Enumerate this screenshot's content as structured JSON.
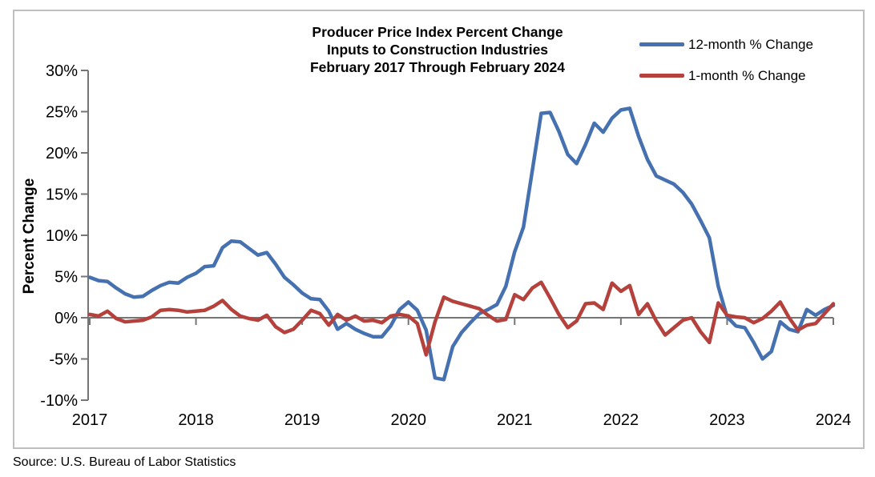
{
  "figure": {
    "title_lines": [
      "Producer Price Index Percent Change",
      "Inputs to Construction Industries",
      "February 2017 Through February 2024"
    ],
    "y_axis_title": "Percent Change",
    "source": "Source: U.S. Bureau of Labor Statistics"
  },
  "legend": {
    "items": [
      {
        "label": "12-month % Change"
      },
      {
        "label": "1-month % Change"
      }
    ]
  },
  "colors": {
    "series_12_month": "#4671B1",
    "series_1_month": "#B4413C",
    "axis": "#757575",
    "figure_border": "#BFBFBF",
    "background": "#FFFFFF",
    "text": "#000000"
  },
  "chart_data": {
    "type": "line",
    "title": "Producer Price Index Percent Change — Inputs to Construction Industries — February 2017 Through February 2024",
    "ylabel": "Percent Change",
    "xlabel": "",
    "frequency": "monthly",
    "x_start": "2017-02",
    "x_end": "2024-02",
    "x_tick_labels": [
      "2017",
      "2018",
      "2019",
      "2020",
      "2021",
      "2022",
      "2023",
      "2024"
    ],
    "y_tick_labels": [
      "30%",
      "25%",
      "20%",
      "15%",
      "10%",
      "5%",
      "0%",
      "-5%",
      "-10%"
    ],
    "ylim": [
      -10,
      30
    ],
    "grid": "zero-line-only",
    "legend_position": "top-right",
    "series": [
      {
        "name": "12-month % Change",
        "color": "#4671B1",
        "values": [
          4.9,
          4.5,
          4.4,
          3.6,
          2.9,
          2.5,
          2.6,
          3.3,
          3.9,
          4.3,
          4.2,
          4.9,
          5.4,
          6.2,
          6.3,
          8.5,
          9.3,
          9.2,
          8.4,
          7.6,
          7.9,
          6.5,
          4.9,
          4.0,
          3.0,
          2.3,
          2.2,
          0.8,
          -1.4,
          -0.7,
          -1.4,
          -1.9,
          -2.3,
          -2.3,
          -1.0,
          1.0,
          1.9,
          0.9,
          -1.5,
          -7.3,
          -7.5,
          -3.5,
          -1.8,
          -0.6,
          0.5,
          1.0,
          1.6,
          3.8,
          8.0,
          11.0,
          17.9,
          24.8,
          24.9,
          22.6,
          19.8,
          18.7,
          21.0,
          23.6,
          22.5,
          24.2,
          25.2,
          25.4,
          22.0,
          19.2,
          17.2,
          16.7,
          16.2,
          15.2,
          13.8,
          11.8,
          9.7,
          3.8,
          0.1,
          -1.0,
          -1.2,
          -3.0,
          -5.0,
          -4.1,
          -0.5,
          -1.4,
          -1.7,
          1.0,
          0.3,
          1.0,
          1.5
        ]
      },
      {
        "name": "1-month % Change",
        "color": "#B4413C",
        "values": [
          0.4,
          0.2,
          0.8,
          -0.1,
          -0.5,
          -0.4,
          -0.3,
          0.1,
          0.9,
          1.0,
          0.9,
          0.7,
          0.8,
          0.9,
          1.4,
          2.1,
          1.0,
          0.2,
          -0.1,
          -0.3,
          0.3,
          -1.1,
          -1.8,
          -1.4,
          -0.3,
          0.9,
          0.5,
          -0.9,
          0.4,
          -0.3,
          0.2,
          -0.4,
          -0.3,
          -0.6,
          0.2,
          0.4,
          0.2,
          -0.7,
          -4.5,
          -0.5,
          2.5,
          2.0,
          1.7,
          1.4,
          1.1,
          0.3,
          -0.4,
          -0.2,
          2.8,
          2.2,
          3.6,
          4.3,
          2.4,
          0.4,
          -1.2,
          -0.4,
          1.7,
          1.8,
          1.0,
          4.2,
          3.2,
          3.9,
          0.4,
          1.7,
          -0.4,
          -2.1,
          -1.2,
          -0.3,
          0.0,
          -1.7,
          -3.0,
          1.8,
          0.3,
          0.1,
          0.0,
          -0.6,
          -0.1,
          0.8,
          1.9,
          0.0,
          -1.5,
          -0.9,
          -0.7,
          0.5,
          1.7
        ]
      }
    ]
  }
}
